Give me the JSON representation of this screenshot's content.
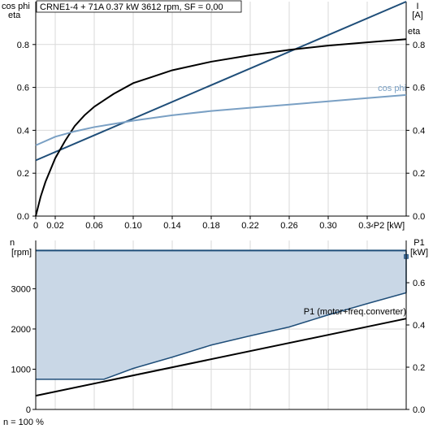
{
  "header": {
    "model": "CRNE1-4 + 71A",
    "power": "0.37 kW",
    "speed_info": "3612 rpm, SF = 0,00"
  },
  "footer": {
    "note": "n = 100 %"
  },
  "chart_data": [
    {
      "type": "line",
      "xlabel": "P2 [kW]",
      "xlim": [
        0,
        0.38
      ],
      "x_ticks": [
        "0",
        "0.02",
        "0.06",
        "0.10",
        "0.14",
        "0.18",
        "0.22",
        "0.26",
        "0.30",
        "0.34"
      ],
      "y_left": {
        "label_line1": "cos phi",
        "label_line2": "eta",
        "lim": [
          0,
          1.0
        ],
        "ticks": [
          "0.0",
          "0.2",
          "0.4",
          "0.6",
          "0.8"
        ]
      },
      "y_right": {
        "label_line1": "I",
        "label_line2": "[A]",
        "lim": [
          0,
          1.0
        ],
        "ticks": [
          "0.0",
          "0.2",
          "0.4",
          "0.6",
          "0.8"
        ]
      },
      "grid": true,
      "series": [
        {
          "name": "I",
          "color": "#1f4e79",
          "axis": "right",
          "x": [
            0.0,
            0.38
          ],
          "y": [
            0.26,
            1.0
          ]
        },
        {
          "name": "eta",
          "color": "#000000",
          "axis": "left",
          "x": [
            0.0,
            0.005,
            0.01,
            0.02,
            0.03,
            0.04,
            0.05,
            0.06,
            0.08,
            0.1,
            0.12,
            0.14,
            0.18,
            0.22,
            0.26,
            0.3,
            0.34,
            0.38
          ],
          "y": [
            0.0,
            0.09,
            0.16,
            0.27,
            0.35,
            0.42,
            0.47,
            0.51,
            0.57,
            0.62,
            0.65,
            0.68,
            0.72,
            0.75,
            0.775,
            0.795,
            0.81,
            0.825
          ]
        },
        {
          "name": "cos phi",
          "color": "#7aa0c4",
          "axis": "left",
          "x": [
            0.0,
            0.02,
            0.04,
            0.06,
            0.08,
            0.1,
            0.14,
            0.18,
            0.22,
            0.26,
            0.3,
            0.34,
            0.38
          ],
          "y": [
            0.33,
            0.37,
            0.395,
            0.415,
            0.43,
            0.445,
            0.47,
            0.49,
            0.505,
            0.52,
            0.535,
            0.55,
            0.565
          ]
        }
      ]
    },
    {
      "type": "area",
      "xlim": [
        0,
        0.38
      ],
      "y_left": {
        "label_line1": "n",
        "label_line2": "[rpm]",
        "lim": [
          0,
          4200
        ],
        "ticks": [
          "0",
          "1000",
          "2000",
          "3000"
        ],
        "tick_values": [
          0,
          1000,
          2000,
          3000
        ]
      },
      "y_right": {
        "label_line1": "P1",
        "label_line2": "[kW]",
        "lim": [
          0,
          0.8
        ],
        "ticks": [
          "0.0",
          "0.2",
          "0.4",
          "0.6"
        ],
        "tick_values": [
          0.0,
          0.2,
          0.4,
          0.6
        ]
      },
      "grid": true,
      "operating_area": {
        "color": "#1f4e79",
        "fill": "#c9d7e6",
        "speed_max_rpm": 3950,
        "lower_x": [
          0.0,
          0.07,
          0.1,
          0.14,
          0.18,
          0.22,
          0.26,
          0.3,
          0.34,
          0.38
        ],
        "lower_rpm": [
          750,
          750,
          1020,
          1300,
          1600,
          1830,
          2050,
          2350,
          2630,
          2900
        ]
      },
      "series": [
        {
          "name": "P1 (motor+freq.converter)",
          "color": "#000000",
          "axis": "right",
          "x": [
            0.0,
            0.38
          ],
          "y": [
            0.065,
            0.43
          ]
        }
      ],
      "marker": {
        "x": 0.38,
        "rpm": 3800
      }
    }
  ]
}
